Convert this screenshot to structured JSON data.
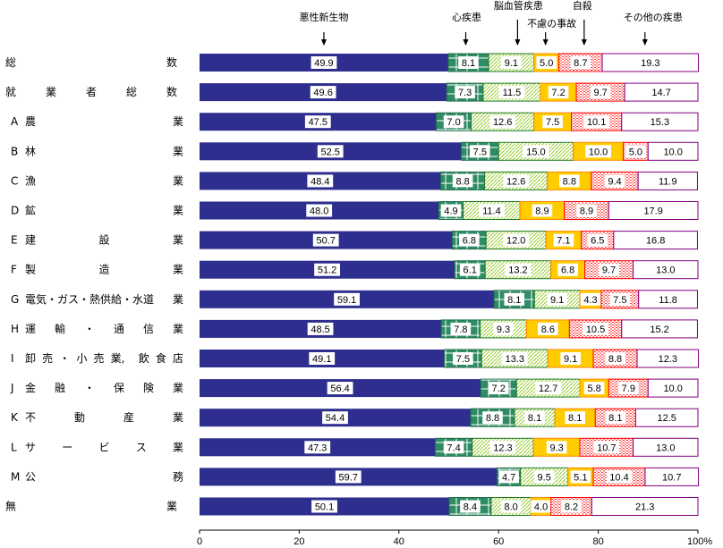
{
  "chart_data": {
    "type": "bar",
    "orientation": "horizontal",
    "stacked": "percent",
    "title": "",
    "xlabel": "",
    "ylabel": "",
    "xlim": [
      0,
      100
    ],
    "x_ticks": [
      "0",
      "20",
      "40",
      "60",
      "80",
      "100%"
    ],
    "x_tick_values": [
      0,
      20,
      40,
      60,
      80,
      100
    ],
    "grid": false,
    "legend_placement": "top (arrow annotations above segments)",
    "categories": [
      {
        "label": "総　　　　　　　　　数",
        "prefix": "",
        "parts": [
          "総",
          "数"
        ]
      },
      {
        "label": "就業者総数",
        "prefix": "",
        "parts": [
          "就",
          "業",
          "者",
          "総",
          "数"
        ]
      },
      {
        "label": "農業",
        "prefix": "A",
        "parts": [
          "農",
          "業"
        ]
      },
      {
        "label": "林業",
        "prefix": "B",
        "parts": [
          "林",
          "業"
        ]
      },
      {
        "label": "漁業",
        "prefix": "C",
        "parts": [
          "漁",
          "業"
        ]
      },
      {
        "label": "鉱業",
        "prefix": "D",
        "parts": [
          "鉱",
          "業"
        ]
      },
      {
        "label": "建設業",
        "prefix": "E",
        "parts": [
          "建",
          "設",
          "業"
        ]
      },
      {
        "label": "製造業",
        "prefix": "F",
        "parts": [
          "製",
          "造",
          "業"
        ]
      },
      {
        "label": "電気・ガス・熱供給・水道業",
        "prefix": "G",
        "parts": [
          "電気・ガス・熱供給・水道",
          "業"
        ]
      },
      {
        "label": "運輸・通信業",
        "prefix": "H",
        "parts": [
          "運",
          "輸",
          "・",
          "通",
          "信",
          "業"
        ]
      },
      {
        "label": "卸売・小売業，飲食店",
        "prefix": "I",
        "parts": [
          "卸",
          "売",
          "・",
          "小",
          "売",
          "業,",
          "飲",
          "食",
          "店"
        ]
      },
      {
        "label": "金融・保険業",
        "prefix": "J",
        "parts": [
          "金",
          "融",
          "・",
          "保",
          "険",
          "業"
        ]
      },
      {
        "label": "不動産業",
        "prefix": "K",
        "parts": [
          "不",
          "動",
          "産",
          "業"
        ]
      },
      {
        "label": "サービス業",
        "prefix": "L",
        "parts": [
          "サ",
          "ー",
          "ビ",
          "ス",
          "業"
        ]
      },
      {
        "label": "公務",
        "prefix": "M",
        "parts": [
          "公",
          "務"
        ]
      },
      {
        "label": "無業",
        "prefix": "",
        "parts": [
          "無",
          "業"
        ]
      }
    ],
    "series": [
      {
        "name": "悪性新生物",
        "color": "#2e2e8f",
        "pattern": "solid",
        "values": [
          49.9,
          49.6,
          47.5,
          52.5,
          48.4,
          48.0,
          50.7,
          51.2,
          59.1,
          48.5,
          49.1,
          56.4,
          54.4,
          47.3,
          59.7,
          50.1
        ]
      },
      {
        "name": "心疾患",
        "color": "#2e8b63",
        "pattern": "grid",
        "values": [
          8.1,
          7.3,
          7.0,
          7.5,
          8.8,
          4.9,
          6.8,
          6.1,
          8.1,
          7.8,
          7.5,
          7.2,
          8.8,
          7.4,
          4.7,
          8.4
        ]
      },
      {
        "name": "脳血管疾患",
        "color": "#9acd32",
        "pattern": "diagonal",
        "values": [
          9.1,
          11.5,
          12.6,
          15.0,
          12.6,
          11.4,
          12.0,
          13.2,
          9.1,
          9.3,
          13.3,
          12.7,
          8.1,
          12.3,
          9.5,
          8.0
        ]
      },
      {
        "name": "不慮の事故",
        "color": "#ffcc00",
        "pattern": "solid",
        "values": [
          5.0,
          7.2,
          7.5,
          10.0,
          8.8,
          8.9,
          7.1,
          6.8,
          4.3,
          8.6,
          9.1,
          5.8,
          8.1,
          9.3,
          5.1,
          4.0
        ]
      },
      {
        "name": "自殺",
        "color": "#ff0000",
        "pattern": "dots",
        "values": [
          8.7,
          9.7,
          10.1,
          5.0,
          9.4,
          8.9,
          6.5,
          9.7,
          7.5,
          10.5,
          8.8,
          7.9,
          8.1,
          10.7,
          10.4,
          8.2
        ]
      },
      {
        "name": "その他の疾患",
        "color": "#800080",
        "pattern": "white",
        "values": [
          19.3,
          14.7,
          15.3,
          10.0,
          11.9,
          17.9,
          16.8,
          13.0,
          11.8,
          15.2,
          12.3,
          10.0,
          12.5,
          13.0,
          10.7,
          21.3
        ]
      }
    ],
    "legend": [
      {
        "label": "悪性新生物",
        "series_index": 0
      },
      {
        "label": "心疾患",
        "series_index": 1
      },
      {
        "label": "脳血管疾患",
        "series_index": 2
      },
      {
        "label": "不慮の事故",
        "series_index": 3
      },
      {
        "label": "自殺",
        "series_index": 4
      },
      {
        "label": "その他の疾患",
        "series_index": 5
      }
    ]
  }
}
